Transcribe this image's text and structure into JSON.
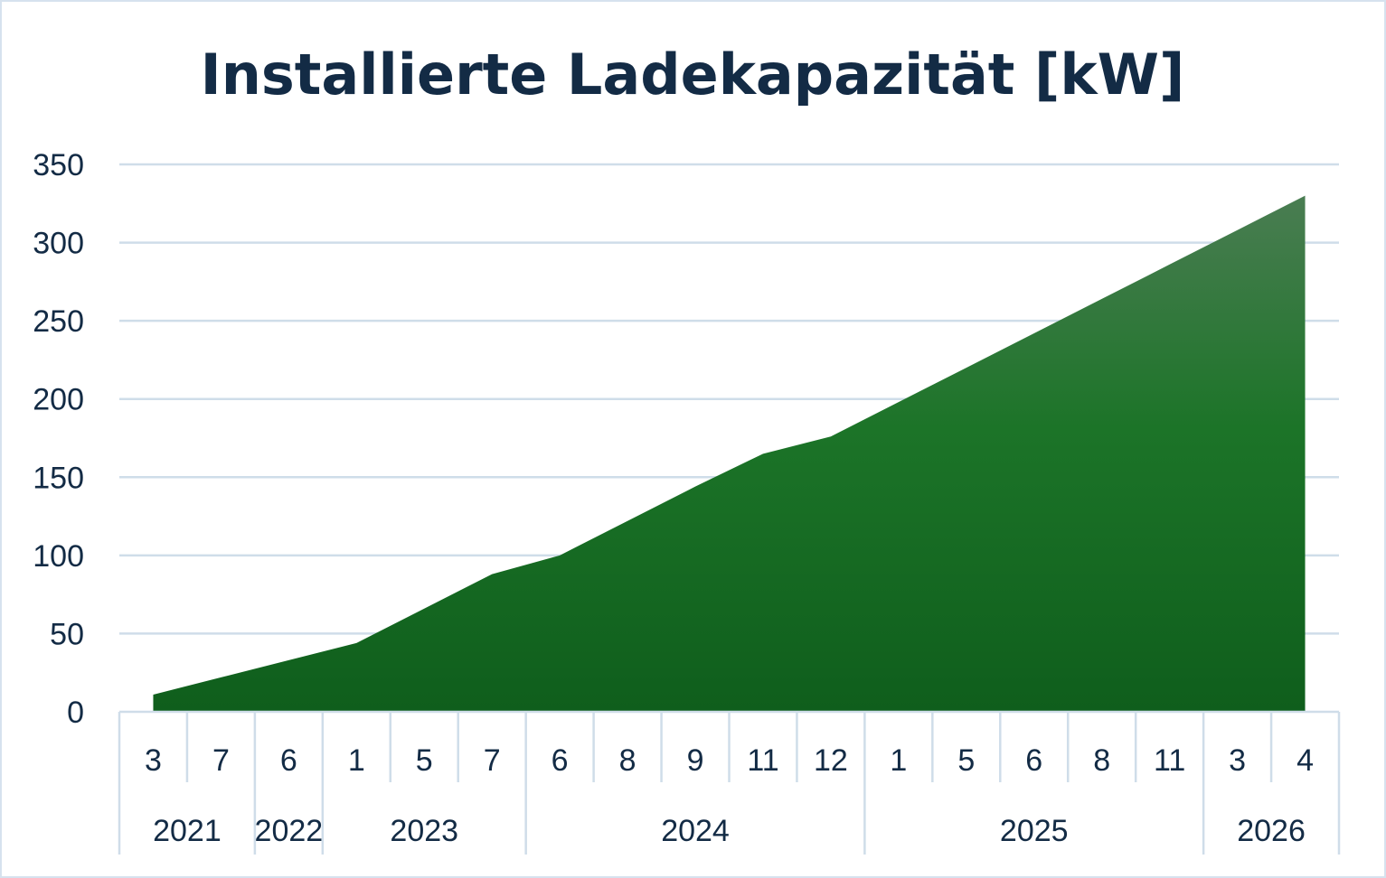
{
  "chart_data": {
    "type": "area",
    "title": "Installierte Ladekapazität [kW]",
    "xlabel": "",
    "ylabel": "",
    "ylim": [
      0,
      350
    ],
    "y_ticks": [
      "0",
      "50",
      "100",
      "150",
      "200",
      "250",
      "300",
      "350"
    ],
    "grid": true,
    "legend": "none",
    "categories": [
      {
        "year": "2021",
        "month": "3"
      },
      {
        "year": "2021",
        "month": "7"
      },
      {
        "year": "2022",
        "month": "6"
      },
      {
        "year": "2023",
        "month": "1"
      },
      {
        "year": "2023",
        "month": "5"
      },
      {
        "year": "2023",
        "month": "7"
      },
      {
        "year": "2024",
        "month": "6"
      },
      {
        "year": "2024",
        "month": "8"
      },
      {
        "year": "2024",
        "month": "9"
      },
      {
        "year": "2024",
        "month": "11"
      },
      {
        "year": "2024",
        "month": "12"
      },
      {
        "year": "2025",
        "month": "1"
      },
      {
        "year": "2025",
        "month": "5"
      },
      {
        "year": "2025",
        "month": "6"
      },
      {
        "year": "2025",
        "month": "8"
      },
      {
        "year": "2025",
        "month": "11"
      },
      {
        "year": "2026",
        "month": "3"
      },
      {
        "year": "2026",
        "month": "4"
      }
    ],
    "year_groups": [
      "2021",
      "2022",
      "2023",
      "2024",
      "2025",
      "2026"
    ],
    "series": [
      {
        "values": [
          11,
          22,
          33,
          44,
          66,
          88,
          100,
          122,
          144,
          165,
          176,
          198,
          220,
          242,
          264,
          286,
          308,
          330
        ]
      }
    ],
    "colors": {
      "area_top": "#4a7d52",
      "area_mid": "#1c7428",
      "area_bottom": "#0f5e1c",
      "grid": "#cfdde9",
      "axis_text": "#132b45",
      "title": "#132b45"
    }
  }
}
